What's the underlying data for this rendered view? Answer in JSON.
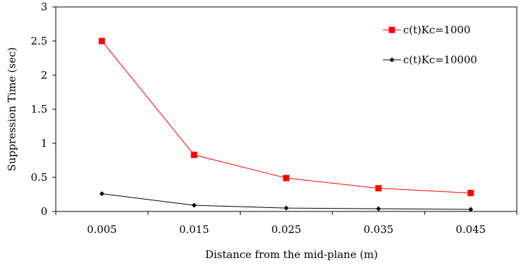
{
  "chart_data": {
    "type": "line",
    "title": "",
    "xlabel": "Distance from the mid-plane (m)",
    "ylabel": "Suppression Time (sec)",
    "categories": [
      "0.005",
      "0.015",
      "0.025",
      "0.035",
      "0.045"
    ],
    "ylim": [
      0,
      3
    ],
    "yticks": [
      "0",
      "0.5",
      "1",
      "1.5",
      "2",
      "2.5",
      "3"
    ],
    "grid": false,
    "legend_position": "top-right",
    "series": [
      {
        "name": "c(t)Kc=1000",
        "color": "#ff0000",
        "marker": "square",
        "values": [
          2.5,
          0.83,
          0.49,
          0.34,
          0.27
        ]
      },
      {
        "name": "c(t)Kc=10000",
        "color": "#000000",
        "marker": "diamond",
        "values": [
          0.26,
          0.09,
          0.05,
          0.04,
          0.03
        ]
      }
    ]
  }
}
